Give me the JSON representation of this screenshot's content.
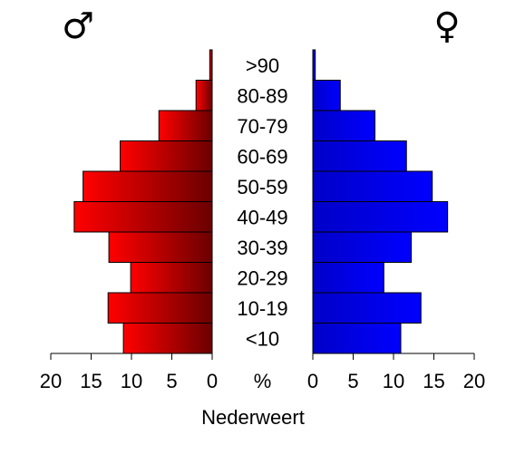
{
  "chart_data": {
    "type": "bar",
    "orientation": "horizontal-population-pyramid",
    "categories": [
      "<10",
      "10-19",
      "20-29",
      "30-39",
      "40-49",
      "50-59",
      "60-69",
      "70-79",
      "80-89",
      ">90"
    ],
    "series": [
      {
        "name": "♂",
        "side": "left",
        "color_light": "#ff0000",
        "color_dark": "#6b0000",
        "values": [
          11.0,
          12.9,
          10.1,
          12.8,
          17.1,
          16.0,
          11.4,
          6.6,
          2.0,
          0.3
        ]
      },
      {
        "name": "♀",
        "side": "right",
        "color_light": "#0000c8",
        "color_dark": "#0000ff",
        "values": [
          10.9,
          13.4,
          8.8,
          12.2,
          16.7,
          14.8,
          11.6,
          7.7,
          3.4,
          0.3
        ]
      }
    ],
    "xlim": [
      0,
      20
    ],
    "x_ticks": [
      "20",
      "15",
      "10",
      "5",
      "0",
      "%",
      "0",
      "5",
      "10",
      "15",
      "20"
    ],
    "xlabel": "Nederweert",
    "unit_label": "%",
    "title": "",
    "grid": false
  }
}
